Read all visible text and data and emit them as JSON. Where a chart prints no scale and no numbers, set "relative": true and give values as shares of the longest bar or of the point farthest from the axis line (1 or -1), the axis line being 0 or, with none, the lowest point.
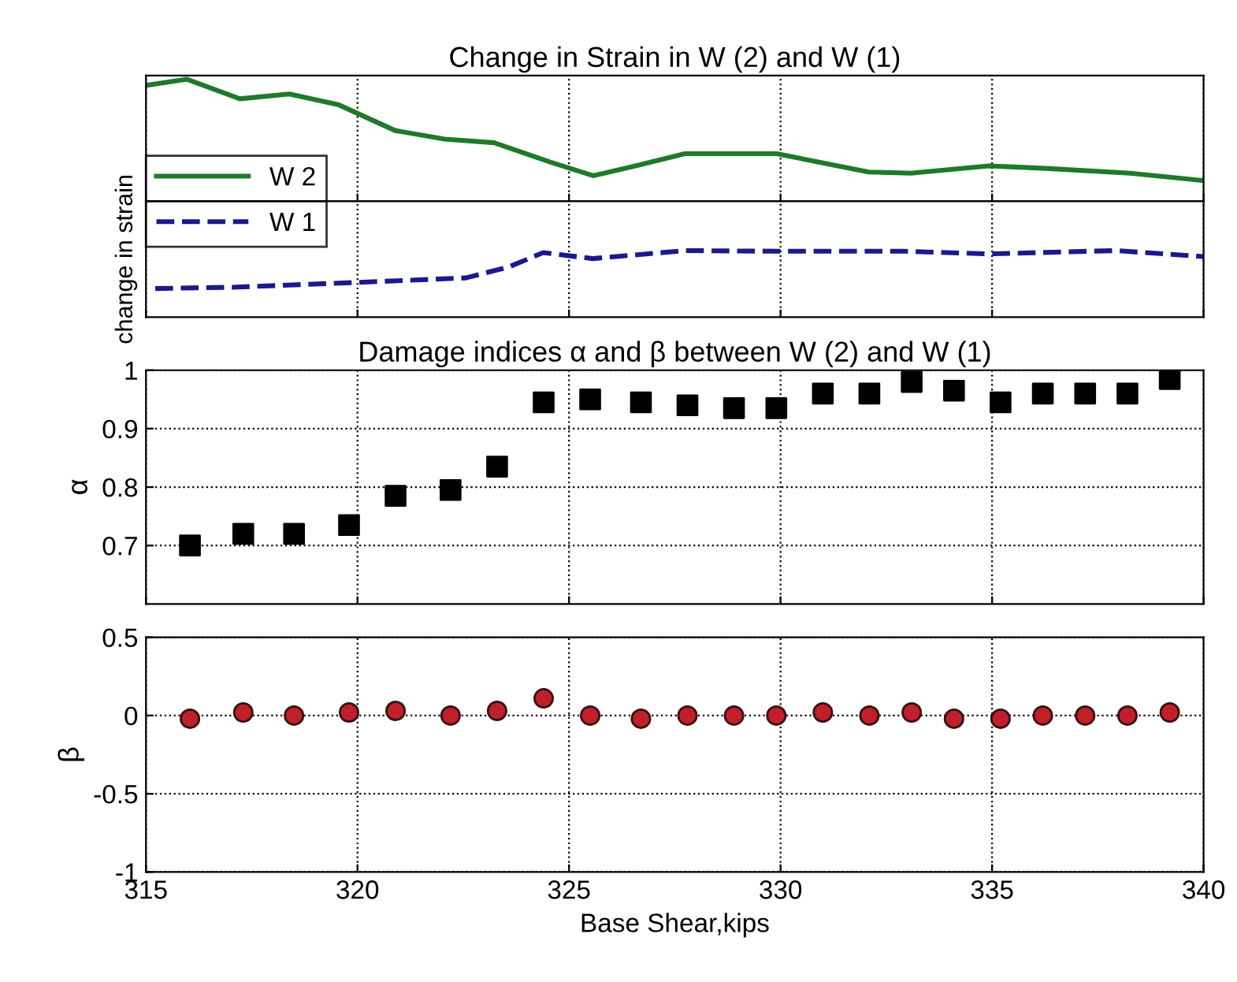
{
  "chart_data": [
    {
      "type": "line",
      "title": "Change in Strain in W (2) and W (1)",
      "relative": true,
      "xlim": [
        315,
        340
      ],
      "xticks": [
        315,
        320,
        325,
        330,
        335,
        340
      ],
      "tick_labels": false,
      "grid": "x",
      "legend": "bottom left",
      "line_style": "solid",
      "series": [
        {
          "name": "W 2",
          "color": "#1e7a2a",
          "x": [
            315,
            315.97,
            317.22,
            318.39,
            319.56,
            320.89,
            322.06,
            323.23,
            324.57,
            325.57,
            326.57,
            327.74,
            329.91,
            332.08,
            333.08,
            334.92,
            336.26,
            338.26,
            340
          ],
          "values": [
            0.95,
            1,
            0.84,
            0.88,
            0.79,
            0.58,
            0.51,
            0.48,
            0.32,
            0.21,
            0.29,
            0.39,
            0.39,
            0.24,
            0.23,
            0.29,
            0.27,
            0.23,
            0.17
          ]
        }
      ]
    },
    {
      "type": "line",
      "ylabel": "change in strain",
      "relative": true,
      "xlim": [
        315,
        340
      ],
      "xticks": [
        315,
        320,
        325,
        330,
        335,
        340
      ],
      "tick_labels": false,
      "grid": "x",
      "legend": "top left",
      "line_style": "dashed",
      "series": [
        {
          "name": "W 1",
          "color": "#1a1a8c",
          "x": [
            315.22,
            317.05,
            319.89,
            322.56,
            323.56,
            324.39,
            325.56,
            327.74,
            329.91,
            332.92,
            334.92,
            337.92,
            340
          ],
          "values": [
            0.43,
            0.45,
            0.52,
            0.59,
            0.75,
            0.97,
            0.88,
            1,
            0.99,
            0.99,
            0.95,
            1,
            0.91
          ]
        }
      ]
    },
    {
      "type": "scatter",
      "title": "Damage indices α and β between W (2) and W (1)",
      "ylabel": "α",
      "xlim": [
        315,
        340
      ],
      "xticks": [
        315,
        320,
        325,
        330,
        335,
        340
      ],
      "ylim": [
        0.6,
        1
      ],
      "yticks": [
        0.7,
        0.8,
        0.9,
        1
      ],
      "tick_labels": "y",
      "grid": true,
      "marker": "square",
      "series": [
        {
          "color": "#000000",
          "x": [
            316.04,
            317.3,
            318.5,
            319.8,
            320.9,
            322.2,
            323.3,
            324.4,
            325.5,
            326.7,
            327.8,
            328.9,
            329.9,
            331.0,
            332.1,
            333.1,
            334.1,
            335.2,
            336.2,
            337.2,
            338.2,
            339.2
          ],
          "values": [
            0.7,
            0.72,
            0.72,
            0.735,
            0.785,
            0.795,
            0.835,
            0.945,
            0.95,
            0.945,
            0.94,
            0.935,
            0.935,
            0.96,
            0.96,
            0.98,
            0.965,
            0.945,
            0.96,
            0.96,
            0.96,
            0.985
          ]
        }
      ]
    },
    {
      "type": "scatter",
      "ylabel": "β",
      "xlabel": "Base Shear,kips",
      "xlim": [
        315,
        340
      ],
      "xticks": [
        315,
        320,
        325,
        330,
        335,
        340
      ],
      "ylim": [
        -1,
        0.5
      ],
      "yticks": [
        -1,
        -0.5,
        0,
        0.5
      ],
      "grid": true,
      "marker": "circle",
      "series": [
        {
          "color": "#c0202a",
          "x": [
            316.04,
            317.3,
            318.5,
            319.8,
            320.9,
            322.2,
            323.3,
            324.4,
            325.5,
            326.7,
            327.8,
            328.9,
            329.9,
            331.0,
            332.1,
            333.1,
            334.1,
            335.2,
            336.2,
            337.2,
            338.2,
            339.2
          ],
          "values": [
            -0.02,
            0.02,
            0,
            0.02,
            0.03,
            0,
            0.03,
            0.11,
            0,
            -0.02,
            0,
            0,
            0,
            0.02,
            0,
            0.02,
            -0.02,
            -0.02,
            0,
            0,
            0,
            0.02
          ]
        }
      ]
    }
  ]
}
